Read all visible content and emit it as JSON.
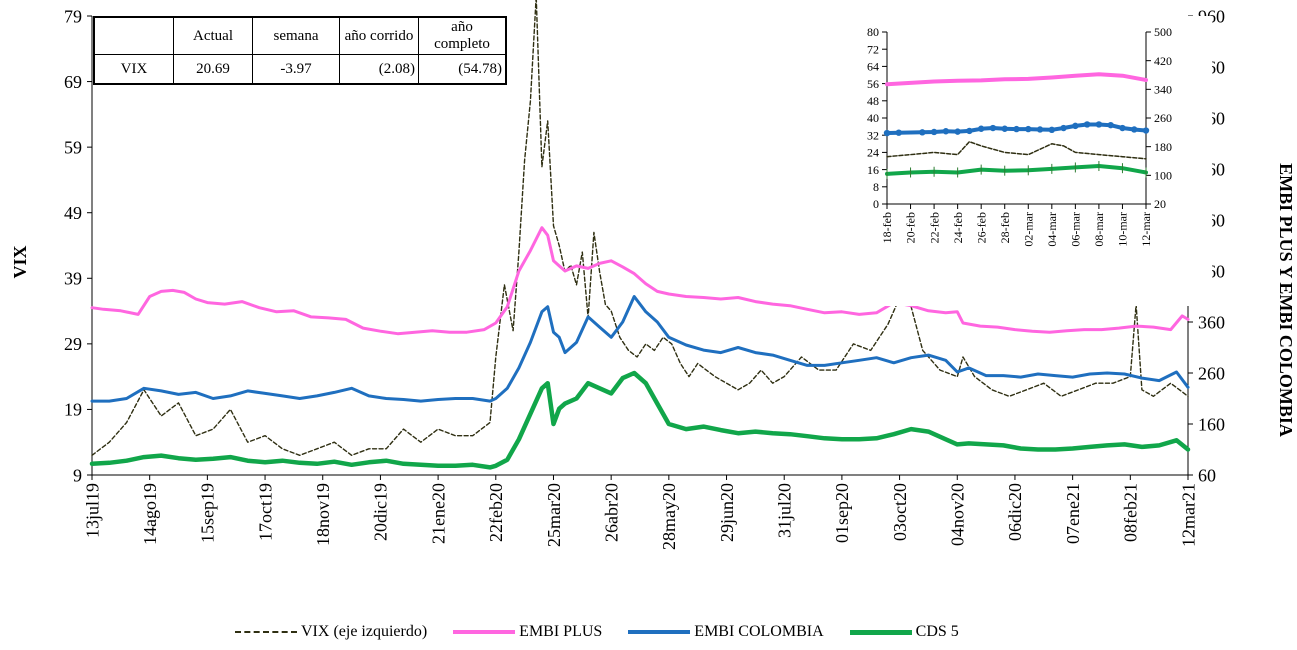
{
  "colors": {
    "vix": "#2f2f12",
    "embi_plus": "#ff66e0",
    "embi_colombia": "#1f6fbf",
    "cds5": "#11a64a"
  },
  "table": {
    "headers": [
      "",
      "Actual",
      "semana",
      "año corrido",
      "año completo"
    ],
    "rows": [
      [
        "VIX",
        "20.69",
        "-3.97",
        "(2.08)",
        "(54.78)"
      ]
    ]
  },
  "chart_data": [
    {
      "type": "line",
      "title": "",
      "ylabel": "VIX",
      "y2label": "EMBI PLUS Y EMBI COLOMBIA",
      "ylim": [
        9,
        79
      ],
      "y2lim": [
        60,
        960
      ],
      "yticks": [
        9,
        19,
        29,
        39,
        49,
        59,
        69,
        79
      ],
      "y2ticks": [
        60,
        160,
        260,
        360,
        460,
        560,
        660,
        760,
        860,
        960
      ],
      "x_ticklabels": [
        "13jul19",
        "14ago19",
        "15sep19",
        "17oct19",
        "18nov19",
        "20dic19",
        "21ene20",
        "22feb20",
        "25mar20",
        "26abr20",
        "28may20",
        "29jun20",
        "31jul20",
        "01sep20",
        "03oct20",
        "04nov20",
        "06dic20",
        "07ene21",
        "08feb21",
        "12mar21"
      ],
      "legend_position": "bottom",
      "series": [
        {
          "name": "VIX (eje izquierdo)",
          "axis": "left",
          "style": "dashed",
          "x": [
            0,
            0.3,
            0.6,
            0.9,
            1.2,
            1.5,
            1.8,
            2.1,
            2.4,
            2.7,
            3.0,
            3.3,
            3.6,
            3.9,
            4.2,
            4.5,
            4.8,
            5.1,
            5.4,
            5.7,
            6.0,
            6.3,
            6.6,
            6.9,
            7.0,
            7.15,
            7.3,
            7.4,
            7.5,
            7.6,
            7.7,
            7.8,
            7.9,
            8.0,
            8.1,
            8.2,
            8.3,
            8.4,
            8.5,
            8.6,
            8.7,
            8.8,
            8.9,
            9.0,
            9.15,
            9.3,
            9.45,
            9.6,
            9.75,
            9.9,
            10.05,
            10.2,
            10.35,
            10.5,
            10.65,
            10.8,
            11.0,
            11.2,
            11.4,
            11.6,
            11.8,
            12.0,
            12.3,
            12.6,
            12.9,
            13.2,
            13.5,
            13.8,
            14.1,
            14.4,
            14.7,
            15.0,
            15.1,
            15.3,
            15.6,
            15.9,
            16.2,
            16.5,
            16.8,
            17.1,
            17.4,
            17.7,
            18.0,
            18.1,
            18.2,
            18.4,
            18.7,
            19.0
          ],
          "values": [
            12,
            14,
            17,
            22,
            18,
            20,
            15,
            16,
            19,
            14,
            15,
            13,
            12,
            13,
            14,
            12,
            13,
            13,
            16,
            14,
            16,
            15,
            15,
            17,
            27,
            38,
            31,
            43,
            57,
            66,
            82,
            56,
            63,
            47,
            44,
            40,
            41,
            38,
            43,
            33,
            46,
            40,
            35,
            34,
            30,
            28,
            27,
            29,
            28,
            30,
            29,
            26,
            24,
            26,
            25,
            24,
            23,
            22,
            23,
            25,
            23,
            24,
            27,
            25,
            25,
            29,
            28,
            32,
            38,
            28,
            25,
            24,
            27,
            24,
            22,
            21,
            22,
            23,
            21,
            22,
            23,
            23,
            24,
            35,
            22,
            21,
            23,
            21
          ]
        },
        {
          "name": "EMBI PLUS",
          "axis": "right",
          "style": "solid",
          "x": [
            0,
            0.2,
            0.5,
            0.8,
            1.0,
            1.2,
            1.4,
            1.6,
            1.8,
            2.0,
            2.3,
            2.6,
            2.9,
            3.2,
            3.5,
            3.8,
            4.1,
            4.4,
            4.7,
            5.0,
            5.3,
            5.6,
            5.9,
            6.2,
            6.5,
            6.8,
            7.0,
            7.2,
            7.4,
            7.6,
            7.8,
            7.9,
            8.0,
            8.1,
            8.2,
            8.4,
            8.6,
            8.8,
            9.0,
            9.2,
            9.4,
            9.6,
            9.8,
            10.0,
            10.3,
            10.6,
            10.9,
            11.2,
            11.5,
            11.8,
            12.1,
            12.4,
            12.7,
            13.0,
            13.3,
            13.6,
            13.9,
            14.2,
            14.5,
            14.8,
            15.0,
            15.1,
            15.4,
            15.7,
            16.0,
            16.3,
            16.6,
            16.9,
            17.2,
            17.5,
            17.8,
            18.1,
            18.4,
            18.7,
            18.9,
            19.0
          ],
          "values": [
            388,
            385,
            382,
            375,
            410,
            420,
            422,
            418,
            405,
            398,
            395,
            400,
            388,
            380,
            382,
            370,
            368,
            365,
            348,
            342,
            337,
            340,
            343,
            340,
            340,
            345,
            358,
            390,
            460,
            500,
            545,
            530,
            480,
            470,
            460,
            470,
            465,
            475,
            480,
            468,
            455,
            435,
            420,
            415,
            410,
            408,
            405,
            408,
            400,
            395,
            392,
            385,
            378,
            380,
            375,
            378,
            398,
            392,
            382,
            378,
            380,
            358,
            352,
            350,
            345,
            342,
            340,
            343,
            345,
            345,
            348,
            352,
            350,
            345,
            372,
            365
          ]
        },
        {
          "name": "EMBI COLOMBIA",
          "axis": "right",
          "style": "solid",
          "x": [
            0,
            0.3,
            0.6,
            0.9,
            1.2,
            1.5,
            1.8,
            2.1,
            2.4,
            2.7,
            3.0,
            3.3,
            3.6,
            3.9,
            4.2,
            4.5,
            4.8,
            5.1,
            5.4,
            5.7,
            6.0,
            6.3,
            6.6,
            6.9,
            7.0,
            7.2,
            7.4,
            7.6,
            7.8,
            7.9,
            8.0,
            8.1,
            8.2,
            8.4,
            8.6,
            8.8,
            9.0,
            9.2,
            9.4,
            9.6,
            9.8,
            10.0,
            10.3,
            10.6,
            10.9,
            11.2,
            11.5,
            11.8,
            12.1,
            12.4,
            12.7,
            13.0,
            13.3,
            13.6,
            13.9,
            14.2,
            14.5,
            14.8,
            15.0,
            15.2,
            15.5,
            15.8,
            16.1,
            16.4,
            16.7,
            17.0,
            17.3,
            17.6,
            17.9,
            18.2,
            18.5,
            18.8,
            19.0
          ],
          "values": [
            205,
            205,
            210,
            230,
            225,
            218,
            222,
            210,
            215,
            225,
            220,
            215,
            210,
            215,
            222,
            230,
            215,
            210,
            208,
            205,
            208,
            210,
            210,
            205,
            210,
            230,
            270,
            320,
            380,
            390,
            340,
            330,
            300,
            320,
            370,
            350,
            330,
            360,
            410,
            380,
            360,
            330,
            315,
            305,
            300,
            310,
            300,
            295,
            285,
            275,
            275,
            280,
            285,
            290,
            280,
            290,
            295,
            285,
            262,
            270,
            255,
            255,
            252,
            258,
            255,
            252,
            258,
            260,
            258,
            250,
            245,
            262,
            232
          ]
        },
        {
          "name": "CDS 5",
          "axis": "right",
          "style": "solid",
          "x": [
            0,
            0.3,
            0.6,
            0.9,
            1.2,
            1.5,
            1.8,
            2.1,
            2.4,
            2.7,
            3.0,
            3.3,
            3.6,
            3.9,
            4.2,
            4.5,
            4.8,
            5.1,
            5.4,
            5.7,
            6.0,
            6.3,
            6.6,
            6.9,
            7.0,
            7.2,
            7.4,
            7.6,
            7.8,
            7.9,
            8.0,
            8.1,
            8.2,
            8.4,
            8.6,
            8.8,
            9.0,
            9.2,
            9.4,
            9.6,
            9.8,
            10.0,
            10.3,
            10.6,
            10.9,
            11.2,
            11.5,
            11.8,
            12.1,
            12.4,
            12.7,
            13.0,
            13.3,
            13.6,
            13.9,
            14.2,
            14.5,
            14.8,
            15.0,
            15.2,
            15.5,
            15.8,
            16.1,
            16.4,
            16.7,
            17.0,
            17.3,
            17.6,
            17.9,
            18.2,
            18.5,
            18.8,
            19.0
          ],
          "values": [
            82,
            84,
            88,
            95,
            98,
            93,
            90,
            92,
            95,
            88,
            85,
            88,
            84,
            82,
            86,
            80,
            85,
            88,
            82,
            80,
            78,
            78,
            80,
            75,
            78,
            90,
            130,
            180,
            230,
            240,
            160,
            190,
            200,
            210,
            240,
            230,
            220,
            250,
            260,
            240,
            200,
            160,
            150,
            155,
            148,
            142,
            145,
            142,
            140,
            136,
            132,
            130,
            130,
            132,
            140,
            150,
            145,
            130,
            120,
            122,
            120,
            118,
            112,
            110,
            110,
            112,
            115,
            118,
            120,
            115,
            118,
            128,
            110
          ]
        }
      ]
    },
    {
      "type": "line",
      "title": "",
      "ylim": [
        0,
        80
      ],
      "y2lim": [
        20,
        500
      ],
      "yticks": [
        0,
        8,
        16,
        24,
        32,
        40,
        48,
        56,
        64,
        72,
        80
      ],
      "y2ticks": [
        20,
        100,
        180,
        260,
        340,
        420,
        500
      ],
      "x_ticklabels": [
        "18-feb",
        "20-feb",
        "22-feb",
        "24-feb",
        "26-feb",
        "28-feb",
        "02-mar",
        "04-mar",
        "06-mar",
        "08-mar",
        "10-mar",
        "12-mar"
      ],
      "series": [
        {
          "name": "EMBI PLUS",
          "axis": "right",
          "x": [
            0,
            1,
            2,
            3,
            4,
            5,
            6,
            7,
            8,
            9,
            10,
            11
          ],
          "values": [
            354,
            358,
            362,
            364,
            365,
            368,
            369,
            373,
            378,
            382,
            378,
            366
          ]
        },
        {
          "name": "EMBI COLOMBIA",
          "axis": "right",
          "x": [
            0,
            0.5,
            1.5,
            2,
            2.5,
            3,
            3.5,
            4,
            4.5,
            5,
            5.5,
            6,
            6.5,
            7,
            7.5,
            8,
            8.5,
            9,
            9.5,
            10,
            10.5,
            11
          ],
          "values": [
            218,
            219,
            220,
            221,
            223,
            222,
            224,
            230,
            232,
            230,
            229,
            229,
            228,
            227,
            232,
            238,
            242,
            242,
            240,
            232,
            228,
            225
          ]
        },
        {
          "name": "VIX",
          "axis": "left",
          "style": "dashed",
          "x": [
            0,
            1,
            2,
            3,
            3.5,
            4,
            5,
            6,
            7,
            7.5,
            8,
            9,
            10,
            11
          ],
          "values": [
            22,
            23,
            24,
            23,
            29,
            27,
            24,
            23,
            28,
            27,
            24,
            23,
            22,
            21
          ]
        },
        {
          "name": "CDS 5",
          "axis": "right",
          "x": [
            0,
            1,
            2,
            3,
            4,
            5,
            6,
            7,
            8,
            9,
            10,
            11
          ],
          "values": [
            104,
            108,
            110,
            108,
            116,
            113,
            114,
            118,
            122,
            126,
            120,
            108
          ]
        }
      ]
    }
  ],
  "legend": [
    {
      "label": "VIX (eje izquierdo)",
      "color": "#2f2f12",
      "dash": true
    },
    {
      "label": "EMBI PLUS",
      "color": "#ff66e0",
      "dash": false
    },
    {
      "label": "EMBI COLOMBIA",
      "color": "#1f6fbf",
      "dash": false
    },
    {
      "label": "CDS 5",
      "color": "#11a64a",
      "dash": false
    }
  ]
}
